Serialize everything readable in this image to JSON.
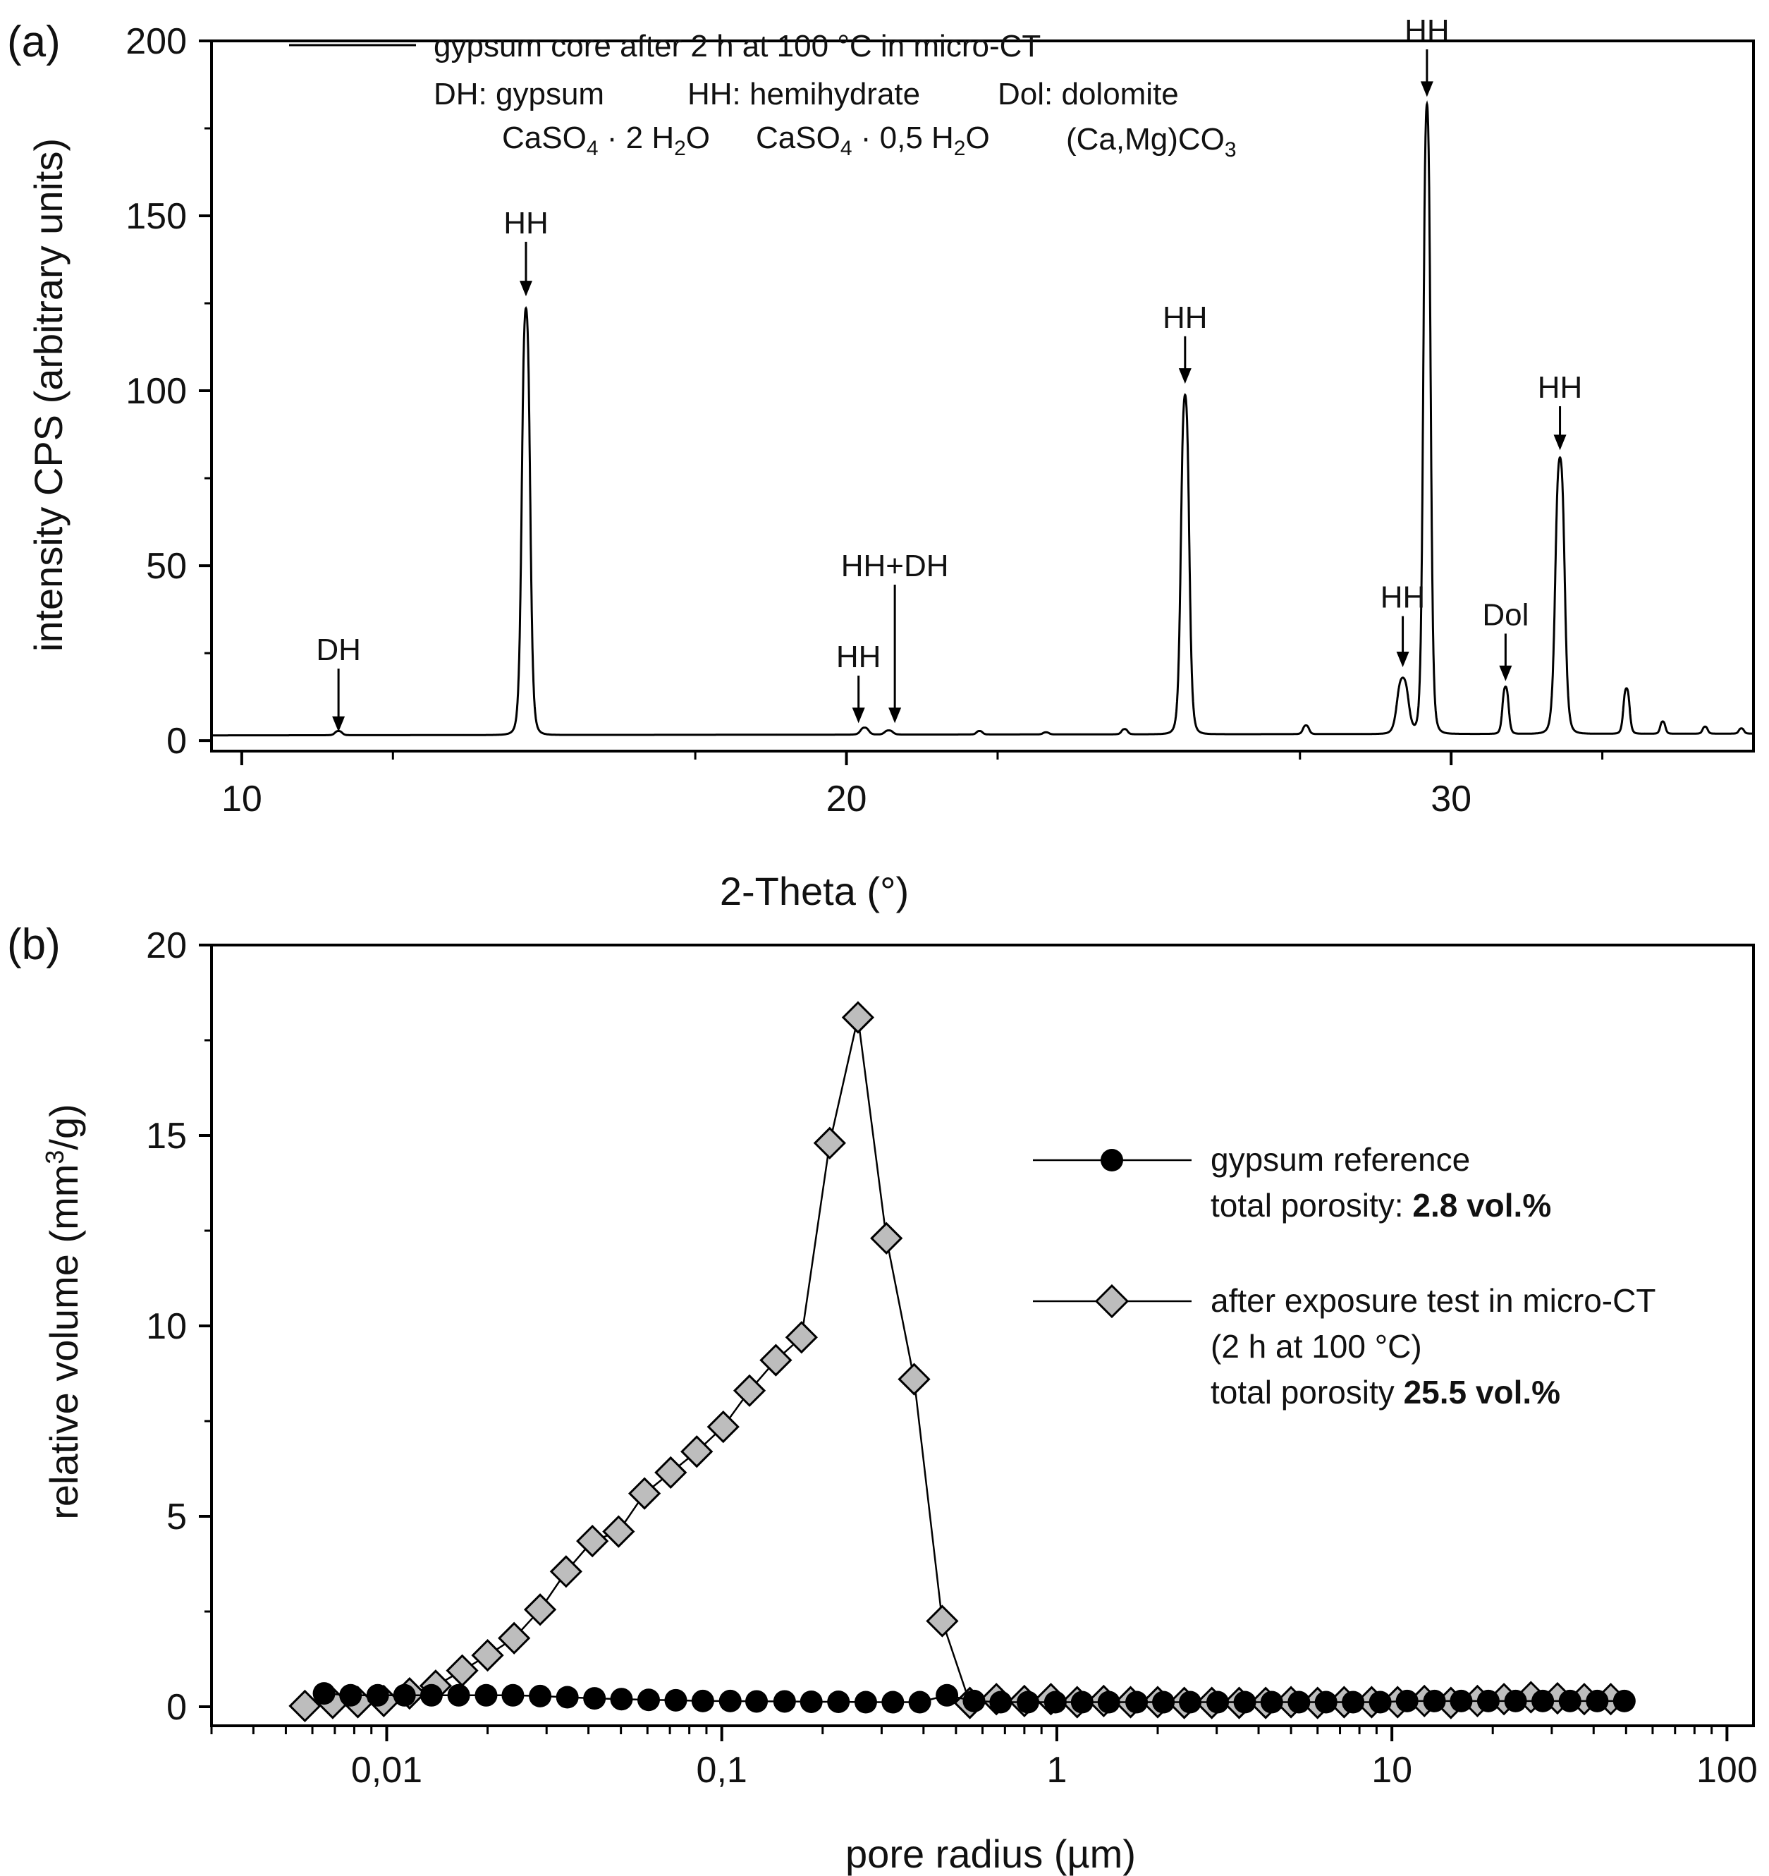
{
  "chart_data": [
    {
      "type": "line",
      "panel_label": "(a)",
      "xlabel": "2-Theta (°)",
      "ylabel": "intensity CPS (arbitrary units)",
      "xlim": [
        9.5,
        35
      ],
      "ylim": [
        -3,
        200
      ],
      "xticks": [
        10,
        20,
        30
      ],
      "yticks": [
        0,
        50,
        100,
        150,
        200
      ],
      "series": [
        {
          "name": "gypsum core after 2 h at 100 °C in micro-CT",
          "baseline": 1.5,
          "peaks": [
            {
              "x": 11.6,
              "h": 1.2,
              "w": 0.07
            },
            {
              "x": 14.7,
              "h": 122,
              "w": 0.08
            },
            {
              "x": 20.3,
              "h": 2.0,
              "w": 0.08
            },
            {
              "x": 20.7,
              "h": 1.2,
              "w": 0.08
            },
            {
              "x": 22.2,
              "h": 1.0,
              "w": 0.06
            },
            {
              "x": 23.3,
              "h": 0.6,
              "w": 0.06
            },
            {
              "x": 24.6,
              "h": 1.5,
              "w": 0.06
            },
            {
              "x": 25.6,
              "h": 97,
              "w": 0.08
            },
            {
              "x": 27.6,
              "h": 2.5,
              "w": 0.06
            },
            {
              "x": 29.2,
              "h": 16,
              "w": 0.11
            },
            {
              "x": 29.6,
              "h": 180,
              "w": 0.07
            },
            {
              "x": 30.9,
              "h": 13.5,
              "w": 0.06
            },
            {
              "x": 31.8,
              "h": 79,
              "w": 0.09
            },
            {
              "x": 32.9,
              "h": 13,
              "w": 0.06
            },
            {
              "x": 33.5,
              "h": 3.5,
              "w": 0.05
            },
            {
              "x": 34.2,
              "h": 2.0,
              "w": 0.05
            },
            {
              "x": 34.8,
              "h": 1.5,
              "w": 0.05
            }
          ]
        }
      ],
      "legend": {
        "line_label": "gypsum core after 2 h at 100 °C in micro-CT",
        "phases": [
          {
            "abbr": "DH: gypsum",
            "formula_a": "CaSO",
            "formula_b": "4",
            "formula_c": " · 2 H",
            "formula_d": "2",
            "formula_e": "O"
          },
          {
            "abbr": "HH: hemihydrate",
            "formula_a": "CaSO",
            "formula_b": "4",
            "formula_c": " · 0,5 H",
            "formula_d": "2",
            "formula_e": "O"
          },
          {
            "abbr": "Dol: dolomite",
            "formula_a": "(Ca,Mg)CO",
            "formula_b": "3",
            "formula_c": "",
            "formula_d": "",
            "formula_e": ""
          }
        ]
      },
      "annotations": [
        {
          "label": "DH",
          "x": 11.6,
          "y_tip": 2.5,
          "y_text": 23
        },
        {
          "label": "HH",
          "x": 14.7,
          "y_tip": 127,
          "y_text": 145
        },
        {
          "label": "HH",
          "x": 20.2,
          "y_tip": 5,
          "y_text": 21
        },
        {
          "label": "HH+DH",
          "x": 20.8,
          "y_tip": 5,
          "y_text": 47
        },
        {
          "label": "HH",
          "x": 25.6,
          "y_tip": 102,
          "y_text": 118
        },
        {
          "label": "HH",
          "x": 29.2,
          "y_tip": 21,
          "y_text": 38
        },
        {
          "label": "HH",
          "x": 29.6,
          "y_tip": 184,
          "y_text": 200
        },
        {
          "label": "Dol",
          "x": 30.9,
          "y_tip": 17,
          "y_text": 33
        },
        {
          "label": "HH",
          "x": 31.8,
          "y_tip": 83,
          "y_text": 98
        }
      ]
    },
    {
      "type": "line",
      "panel_label": "(b)",
      "xscale": "log",
      "xlabel": "pore radius (µm)",
      "ylabel_a": "relative volume (mm",
      "ylabel_sup": "3",
      "ylabel_b": "/g)",
      "xlim": [
        0.003,
        120
      ],
      "ylim": [
        -0.5,
        20
      ],
      "xticks": [
        0.01,
        0.1,
        1,
        10,
        100
      ],
      "xticklabels": [
        "0,01",
        "0,1",
        "1",
        "10",
        "100"
      ],
      "yticks": [
        0,
        5,
        10,
        15,
        20
      ],
      "series": [
        {
          "name": "gypsum reference",
          "legend_line1": "gypsum reference",
          "legend_line2_prefix": "total porosity: ",
          "legend_line2_bold": "2.8 vol.%",
          "marker": "circle",
          "color": "#000000",
          "x": [
            0.0065,
            0.0078,
            0.0094,
            0.0113,
            0.0136,
            0.0164,
            0.0198,
            0.0238,
            0.0287,
            0.0346,
            0.0417,
            0.0502,
            0.0605,
            0.0729,
            0.0878,
            0.106,
            0.127,
            0.154,
            0.185,
            0.223,
            0.269,
            0.324,
            0.39,
            0.47,
            0.566,
            0.68,
            0.82,
            0.99,
            1.19,
            1.43,
            1.73,
            2.08,
            2.5,
            3.02,
            3.64,
            4.38,
            5.28,
            6.36,
            7.66,
            9.23,
            11.1,
            13.4,
            16.1,
            19.4,
            23.4,
            28.2,
            34.0,
            41.0,
            49.4
          ],
          "y": [
            0.35,
            0.3,
            0.3,
            0.3,
            0.3,
            0.3,
            0.3,
            0.3,
            0.28,
            0.25,
            0.22,
            0.2,
            0.18,
            0.17,
            0.15,
            0.15,
            0.14,
            0.14,
            0.13,
            0.13,
            0.12,
            0.12,
            0.12,
            0.3,
            0.15,
            0.12,
            0.12,
            0.12,
            0.12,
            0.12,
            0.12,
            0.12,
            0.12,
            0.12,
            0.12,
            0.12,
            0.12,
            0.12,
            0.12,
            0.12,
            0.15,
            0.15,
            0.15,
            0.15,
            0.15,
            0.15,
            0.15,
            0.15,
            0.15
          ]
        },
        {
          "name": "after exposure test in micro-CT",
          "legend_line1": "after exposure test in micro-CT",
          "legend_line2": "(2 h at 100 °C)",
          "legend_line3_prefix": "total porosity ",
          "legend_line3_bold": "25.5 vol.%",
          "marker": "diamond",
          "color": "#bdbdbd",
          "x": [
            0.0057,
            0.0069,
            0.0082,
            0.0098,
            0.0117,
            0.014,
            0.0168,
            0.02,
            0.024,
            0.0287,
            0.0343,
            0.0411,
            0.0492,
            0.0588,
            0.0704,
            0.0842,
            0.101,
            0.121,
            0.145,
            0.173,
            0.21,
            0.255,
            0.31,
            0.375,
            0.455,
            0.55,
            0.66,
            0.8,
            0.96,
            1.15,
            1.38,
            1.66,
            2.0,
            2.4,
            2.9,
            3.5,
            4.2,
            5.0,
            6.0,
            7.2,
            8.7,
            10.4,
            12.5,
            15.0,
            18.0,
            21.6,
            26.0,
            31.2,
            37.5,
            45.0
          ],
          "y": [
            0.02,
            0.1,
            0.12,
            0.15,
            0.35,
            0.55,
            0.95,
            1.35,
            1.8,
            2.55,
            3.55,
            4.35,
            4.6,
            5.6,
            6.15,
            6.7,
            7.35,
            8.3,
            9.1,
            9.7,
            14.8,
            18.1,
            12.3,
            8.6,
            2.25,
            0.1,
            0.2,
            0.15,
            0.2,
            0.12,
            0.15,
            0.12,
            0.12,
            0.1,
            0.1,
            0.1,
            0.1,
            0.12,
            0.1,
            0.12,
            0.12,
            0.12,
            0.15,
            0.1,
            0.15,
            0.2,
            0.25,
            0.22,
            0.2,
            0.2
          ]
        }
      ]
    }
  ]
}
